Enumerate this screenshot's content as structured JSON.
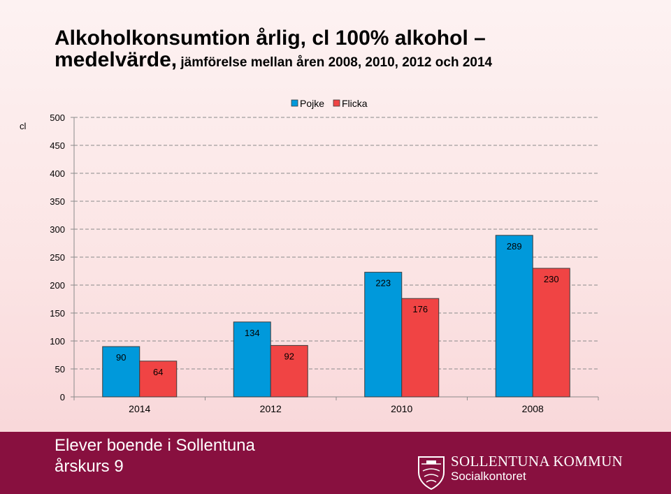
{
  "slide": {
    "title_line1": "Alkoholkonsumtion årlig, cl 100% alkohol –",
    "title_line2_bold": "medelvärde,",
    "title_line2_rest": " jämförelse mellan åren 2008, 2010, 2012 och 2014"
  },
  "chart_data": {
    "type": "bar",
    "categories": [
      "2014",
      "2012",
      "2010",
      "2008"
    ],
    "series": [
      {
        "name": "Pojke",
        "values": [
          90,
          134,
          223,
          289
        ],
        "color": "#0099db"
      },
      {
        "name": "Flicka",
        "values": [
          64,
          92,
          176,
          230
        ],
        "color": "#f04444"
      }
    ],
    "ylabel": "cl",
    "ylim": [
      0,
      500
    ],
    "yticks": [
      0,
      50,
      100,
      150,
      200,
      250,
      300,
      350,
      400,
      450,
      500
    ],
    "grid": true,
    "legend_position": "top-center",
    "data_labels": true
  },
  "footer": {
    "line1": "Elever boende i Sollentuna",
    "line2": "årskurs 9",
    "org_name": "SOLLENTUNA KOMMUN",
    "org_dept": "Socialkontoret"
  }
}
